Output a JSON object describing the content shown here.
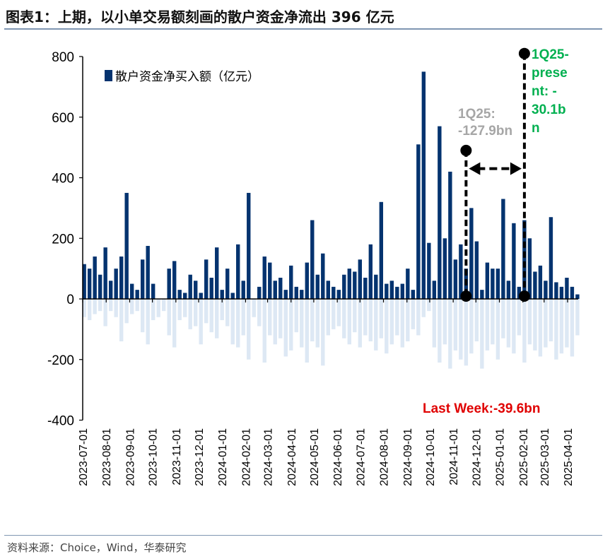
{
  "title": "图表1：上期，以小单交易额刻画的散户资金净流出 396 亿元",
  "source": "资料来源：Choice，Wind，华泰研究",
  "colors": {
    "positive": "#04336f",
    "negative": "#dde8f4",
    "annot_gray": "#a6a6a6",
    "annot_green": "#00b050",
    "annot_red": "#e00000"
  },
  "chart_data": {
    "type": "bar",
    "title": "",
    "xlabel": "",
    "ylabel": "",
    "ylim": [
      -400,
      800
    ],
    "yticks": [
      "-400",
      "-200",
      "0",
      "200",
      "400",
      "600",
      "800"
    ],
    "xticks": [
      "2023-07-01",
      "2023-08-01",
      "2023-09-01",
      "2023-10-01",
      "2023-11-01",
      "2023-12-01",
      "2024-01-01",
      "2024-02-01",
      "2024-03-01",
      "2024-04-01",
      "2024-05-01",
      "2024-06-01",
      "2024-07-01",
      "2024-08-01",
      "2024-09-01",
      "2024-10-01",
      "2024-11-01",
      "2024-12-01",
      "2025-01-01",
      "2025-02-01",
      "2025-03-01",
      "2025-04-01"
    ],
    "grid": false,
    "legend": {
      "placement": "top-left",
      "entries": [
        "散户资金净买入额（亿元）"
      ]
    },
    "x": [
      "2023-07-03",
      "2023-07-10",
      "2023-07-17",
      "2023-07-24",
      "2023-07-31",
      "2023-08-07",
      "2023-08-14",
      "2023-08-21",
      "2023-08-28",
      "2023-09-04",
      "2023-09-11",
      "2023-09-18",
      "2023-09-25",
      "2023-10-02",
      "2023-10-09",
      "2023-10-16",
      "2023-10-23",
      "2023-10-30",
      "2023-11-06",
      "2023-11-13",
      "2023-11-20",
      "2023-11-27",
      "2023-12-04",
      "2023-12-11",
      "2023-12-18",
      "2023-12-25",
      "2024-01-01",
      "2024-01-08",
      "2024-01-15",
      "2024-01-22",
      "2024-01-29",
      "2024-02-05",
      "2024-02-12",
      "2024-02-19",
      "2024-02-26",
      "2024-03-04",
      "2024-03-11",
      "2024-03-18",
      "2024-03-25",
      "2024-04-01",
      "2024-04-08",
      "2024-04-15",
      "2024-04-22",
      "2024-04-29",
      "2024-05-06",
      "2024-05-13",
      "2024-05-20",
      "2024-05-27",
      "2024-06-03",
      "2024-06-10",
      "2024-06-17",
      "2024-06-24",
      "2024-07-01",
      "2024-07-08",
      "2024-07-15",
      "2024-07-22",
      "2024-07-29",
      "2024-08-05",
      "2024-08-12",
      "2024-08-19",
      "2024-08-26",
      "2024-09-02",
      "2024-09-09",
      "2024-09-16",
      "2024-09-23",
      "2024-09-30",
      "2024-10-07",
      "2024-10-14",
      "2024-10-21",
      "2024-10-28",
      "2024-11-04",
      "2024-11-11",
      "2024-11-18",
      "2024-11-25",
      "2024-12-02",
      "2024-12-09",
      "2024-12-16",
      "2024-12-23",
      "2024-12-30",
      "2025-01-06",
      "2025-01-13",
      "2025-01-20",
      "2025-01-27",
      "2025-02-03",
      "2025-02-10",
      "2025-02-17",
      "2025-02-24",
      "2025-03-03",
      "2025-03-10",
      "2025-03-17",
      "2025-03-24",
      "2025-03-31",
      "2025-04-07",
      "2025-04-14"
    ],
    "series": [
      {
        "name": "散户资金净买入额（亿元）",
        "values": [
          115,
          100,
          140,
          80,
          170,
          60,
          100,
          140,
          350,
          50,
          30,
          130,
          175,
          50,
          0,
          0,
          100,
          125,
          30,
          20,
          80,
          60,
          20,
          130,
          70,
          170,
          30,
          100,
          20,
          180,
          60,
          350,
          0,
          40,
          140,
          120,
          60,
          70,
          30,
          110,
          40,
          30,
          120,
          260,
          80,
          150,
          60,
          40,
          30,
          80,
          100,
          90,
          130,
          70,
          180,
          80,
          320,
          50,
          60,
          40,
          50,
          100,
          30,
          510,
          750,
          185,
          60,
          570,
          200,
          420,
          130,
          180,
          100,
          300,
          190,
          30,
          120,
          100,
          100,
          330,
          60,
          250,
          40,
          260,
          200,
          90,
          110,
          60,
          270,
          55,
          40,
          70,
          40,
          15
        ]
      },
      {
        "values": [
          -60,
          -70,
          -50,
          -40,
          -90,
          -40,
          -60,
          -140,
          -80,
          -50,
          -40,
          -110,
          -150,
          -70,
          -60,
          -40,
          -120,
          -160,
          -70,
          -60,
          -100,
          -90,
          -150,
          -80,
          -110,
          -130,
          -70,
          -90,
          -150,
          -160,
          -120,
          -200,
          -60,
          -90,
          -210,
          -120,
          -150,
          -130,
          -190,
          -170,
          -110,
          -160,
          -210,
          -140,
          -160,
          -220,
          -120,
          -100,
          -90,
          -130,
          -150,
          -110,
          -160,
          -120,
          -140,
          -170,
          -130,
          -180,
          -150,
          -120,
          -160,
          -140,
          -100,
          -120,
          -60,
          -40,
          -160,
          -210,
          -150,
          -230,
          -170,
          -200,
          -220,
          -180,
          -140,
          -230,
          -170,
          -150,
          -200,
          -130,
          -160,
          -180,
          -120,
          -210,
          -150,
          -170,
          -190,
          -160,
          -140,
          -200,
          -180,
          -160,
          -190,
          -120
        ]
      }
    ],
    "annotations": [
      {
        "text": "1Q25: -127.9bn",
        "color": "gray",
        "start_date": "2024-11-18",
        "marker_value": 490
      },
      {
        "text": "1Q25-present: -30.1bn",
        "color": "green",
        "start_date": "2025-02-03",
        "marker_value": 810
      },
      {
        "text": "Last Week:-39.6bn",
        "color": "red"
      }
    ],
    "arrow": {
      "from": "2024-11-18",
      "to": "2025-02-03",
      "value": 430
    }
  }
}
